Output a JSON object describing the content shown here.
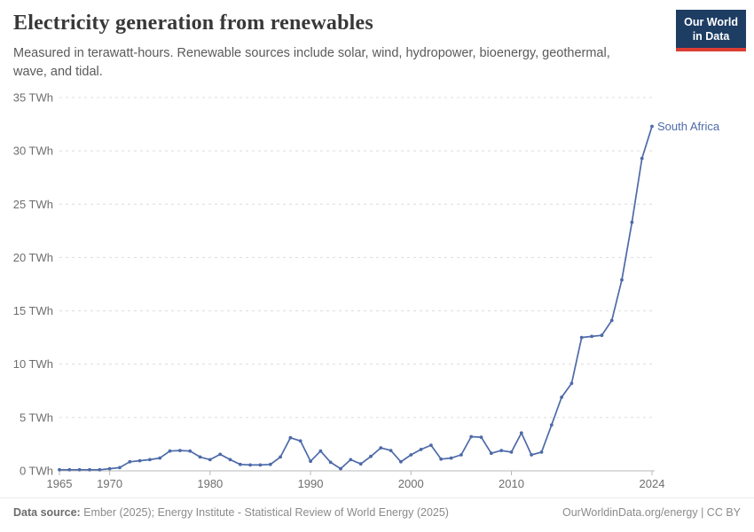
{
  "header": {
    "title": "Electricity generation from renewables",
    "subtitle": "Measured in terawatt-hours. Renewable sources include solar, wind, hydropower, bioenergy, geothermal, wave, and tidal.",
    "logo": {
      "line1": "Our World",
      "line2": "in Data"
    }
  },
  "chart_data": {
    "type": "line",
    "title": "Electricity generation from renewables",
    "entity": "South Africa",
    "unit": "TWh",
    "years": [
      1965,
      1966,
      1967,
      1968,
      1969,
      1970,
      1971,
      1972,
      1973,
      1974,
      1975,
      1976,
      1977,
      1978,
      1979,
      1980,
      1981,
      1982,
      1983,
      1984,
      1985,
      1986,
      1987,
      1988,
      1989,
      1990,
      1991,
      1992,
      1993,
      1994,
      1995,
      1996,
      1997,
      1998,
      1999,
      2000,
      2001,
      2002,
      2003,
      2004,
      2005,
      2006,
      2007,
      2008,
      2009,
      2010,
      2011,
      2012,
      2013,
      2014,
      2015,
      2016,
      2017,
      2018,
      2019,
      2020,
      2021,
      2022,
      2023,
      2024
    ],
    "values": [
      0.1,
      0.1,
      0.1,
      0.1,
      0.1,
      0.2,
      0.3,
      0.85,
      0.95,
      1.05,
      1.2,
      1.85,
      1.9,
      1.85,
      1.3,
      1.05,
      1.55,
      1.05,
      0.6,
      0.55,
      0.55,
      0.6,
      1.3,
      3.1,
      2.8,
      0.9,
      1.85,
      0.8,
      0.2,
      1.05,
      0.65,
      1.35,
      2.15,
      1.9,
      0.85,
      1.5,
      2.0,
      2.4,
      1.1,
      1.2,
      1.5,
      3.2,
      3.15,
      1.65,
      1.9,
      1.75,
      3.55,
      1.5,
      1.75,
      4.3,
      6.9,
      8.2,
      12.5,
      12.6,
      12.7,
      14.1,
      17.9,
      23.3,
      29.3,
      32.3
    ],
    "ylim": [
      0,
      35
    ],
    "yticks": [
      {
        "value": 0,
        "label": "0 TWh"
      },
      {
        "value": 5,
        "label": "5 TWh"
      },
      {
        "value": 10,
        "label": "10 TWh"
      },
      {
        "value": 15,
        "label": "15 TWh"
      },
      {
        "value": 20,
        "label": "20 TWh"
      },
      {
        "value": 25,
        "label": "25 TWh"
      },
      {
        "value": 30,
        "label": "30 TWh"
      },
      {
        "value": 35,
        "label": "35 TWh"
      }
    ],
    "xticks": [
      {
        "value": 1965,
        "label": "1965"
      },
      {
        "value": 1970,
        "label": "1970"
      },
      {
        "value": 1980,
        "label": "1980"
      },
      {
        "value": 1990,
        "label": "1990"
      },
      {
        "value": 2000,
        "label": "2000"
      },
      {
        "value": 2010,
        "label": "2010"
      },
      {
        "value": 2024,
        "label": "2024"
      }
    ],
    "grid": "horizontal-dashed",
    "legend_position": "end-of-line",
    "colors": {
      "line": "#4d6aa8",
      "entity_label": "#4d6aa8",
      "grid": "#dcdcdc",
      "axis": "#b9b9b9",
      "tick_text": "#6e6e6e"
    }
  },
  "footer": {
    "source_label": "Data source:",
    "source_text": "Ember (2025); Energy Institute - Statistical Review of World Energy (2025)",
    "link_text": "OurWorldinData.org/energy | CC BY"
  }
}
